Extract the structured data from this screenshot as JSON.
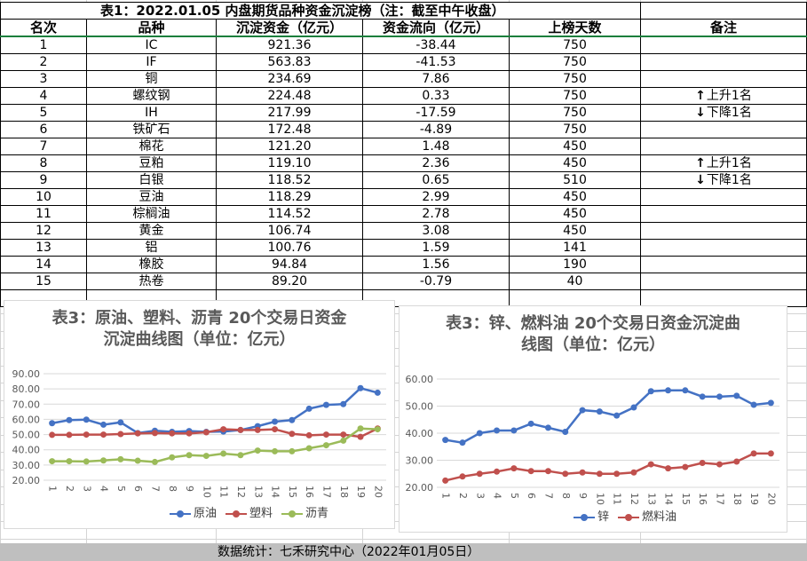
{
  "table": {
    "title": "表1：2022.01.05 内盘期货品种资金沉淀榜（注：截至中午收盘）",
    "headers": [
      "名次",
      "品种",
      "沉淀资金（亿元）",
      "资金流向（亿元）",
      "上榜天数",
      "备注"
    ],
    "rows": [
      {
        "rank": "1",
        "name": "IC",
        "fund": "921.36",
        "flow": "-38.44",
        "days": "750",
        "note_arrow": "",
        "note": ""
      },
      {
        "rank": "2",
        "name": "IF",
        "fund": "563.83",
        "flow": "-41.53",
        "days": "750",
        "note_arrow": "",
        "note": ""
      },
      {
        "rank": "3",
        "name": "铜",
        "fund": "234.69",
        "flow": "7.86",
        "days": "750",
        "note_arrow": "",
        "note": ""
      },
      {
        "rank": "4",
        "name": "螺纹钢",
        "fund": "224.48",
        "flow": "0.33",
        "days": "750",
        "note_arrow": "↑",
        "note": "上升1名"
      },
      {
        "rank": "5",
        "name": "IH",
        "fund": "217.99",
        "flow": "-17.59",
        "days": "750",
        "note_arrow": "↓",
        "note": "下降1名"
      },
      {
        "rank": "6",
        "name": "铁矿石",
        "fund": "172.48",
        "flow": "-4.89",
        "days": "750",
        "note_arrow": "",
        "note": ""
      },
      {
        "rank": "7",
        "name": "棉花",
        "fund": "121.20",
        "flow": "1.48",
        "days": "450",
        "note_arrow": "",
        "note": ""
      },
      {
        "rank": "8",
        "name": "豆粕",
        "fund": "119.10",
        "flow": "2.36",
        "days": "450",
        "note_arrow": "↑",
        "note": "上升1名"
      },
      {
        "rank": "9",
        "name": "白银",
        "fund": "118.52",
        "flow": "0.65",
        "days": "510",
        "note_arrow": "↓",
        "note": "下降1名"
      },
      {
        "rank": "10",
        "name": "豆油",
        "fund": "118.29",
        "flow": "2.99",
        "days": "450",
        "note_arrow": "",
        "note": ""
      },
      {
        "rank": "11",
        "name": "棕榈油",
        "fund": "114.52",
        "flow": "2.78",
        "days": "450",
        "note_arrow": "",
        "note": ""
      },
      {
        "rank": "12",
        "name": "黄金",
        "fund": "106.74",
        "flow": "3.08",
        "days": "450",
        "note_arrow": "",
        "note": ""
      },
      {
        "rank": "13",
        "name": "铝",
        "fund": "100.76",
        "flow": "1.59",
        "days": "141",
        "note_arrow": "",
        "note": ""
      },
      {
        "rank": "14",
        "name": "橡胶",
        "fund": "94.84",
        "flow": "1.56",
        "days": "190",
        "note_arrow": "",
        "note": ""
      },
      {
        "rank": "15",
        "name": "热卷",
        "fund": "89.20",
        "flow": "-0.79",
        "days": "40",
        "note_arrow": "",
        "note": ""
      }
    ]
  },
  "chart_data": [
    {
      "type": "line",
      "title": "表3：原油、塑料、沥青 20个交易日资金沉淀曲线图（单位：亿元）",
      "title_lines": [
        "表3：原油、塑料、沥青 20个交易日资金",
        "沉淀曲线图（单位：亿元）"
      ],
      "x": [
        "1",
        "2",
        "3",
        "4",
        "5",
        "6",
        "7",
        "8",
        "9",
        "10",
        "11",
        "12",
        "13",
        "14",
        "15",
        "16",
        "17",
        "18",
        "19",
        "20"
      ],
      "ylim": [
        20,
        90
      ],
      "yticks": [
        "20.00",
        "30.00",
        "40.00",
        "50.00",
        "60.00",
        "70.00",
        "80.00",
        "90.00"
      ],
      "grid": true,
      "legend": "bottom",
      "series": [
        {
          "name": "原油",
          "color": "#4472c4",
          "values": [
            57.5,
            59.5,
            59.8,
            56.5,
            58.0,
            51.0,
            52.5,
            51.8,
            52.3,
            51.8,
            52.0,
            53.0,
            55.5,
            58.5,
            59.5,
            67.0,
            69.5,
            70.0,
            80.5,
            77.5
          ]
        },
        {
          "name": "塑料",
          "color": "#c0504d",
          "values": [
            49.8,
            49.8,
            50.0,
            50.0,
            50.3,
            50.8,
            51.0,
            50.8,
            50.8,
            51.5,
            53.5,
            53.0,
            53.0,
            53.5,
            50.5,
            49.5,
            50.0,
            50.0,
            48.5,
            54.0
          ]
        },
        {
          "name": "沥青",
          "color": "#9bbb59",
          "values": [
            32.5,
            32.5,
            32.3,
            33.0,
            33.8,
            32.8,
            32.0,
            35.0,
            36.5,
            36.0,
            37.5,
            36.5,
            39.5,
            39.0,
            39.0,
            41.0,
            43.0,
            46.0,
            54.0,
            53.5
          ]
        }
      ]
    },
    {
      "type": "line",
      "title": "表3：锌、燃料油 20个交易日资金沉淀曲线图（单位：亿元）",
      "title_lines": [
        "表3：锌、燃料油 20个交易日资金沉淀曲",
        "线图（单位：亿元）"
      ],
      "x": [
        "1",
        "2",
        "3",
        "4",
        "5",
        "6",
        "7",
        "8",
        "9",
        "10",
        "11",
        "12",
        "13",
        "14",
        "15",
        "16",
        "17",
        "18",
        "19",
        "20"
      ],
      "ylim": [
        20,
        60
      ],
      "yticks": [
        "20.00",
        "30.00",
        "40.00",
        "50.00",
        "60.00"
      ],
      "grid": true,
      "legend": "bottom",
      "series": [
        {
          "name": "锌",
          "color": "#4472c4",
          "values": [
            37.5,
            36.5,
            40.0,
            41.0,
            41.0,
            43.5,
            42.0,
            40.5,
            48.5,
            48.0,
            46.5,
            49.5,
            55.5,
            55.8,
            55.8,
            53.5,
            53.5,
            53.8,
            50.5,
            51.2
          ]
        },
        {
          "name": "燃料油",
          "color": "#c0504d",
          "values": [
            22.5,
            24.0,
            25.0,
            25.8,
            27.0,
            26.0,
            26.0,
            25.0,
            25.5,
            25.0,
            25.0,
            25.5,
            28.5,
            27.0,
            27.5,
            29.0,
            28.5,
            29.5,
            32.5,
            32.5
          ]
        }
      ]
    }
  ],
  "footer": {
    "text": "数据统计：七禾研究中心（2022年01月05日）"
  }
}
